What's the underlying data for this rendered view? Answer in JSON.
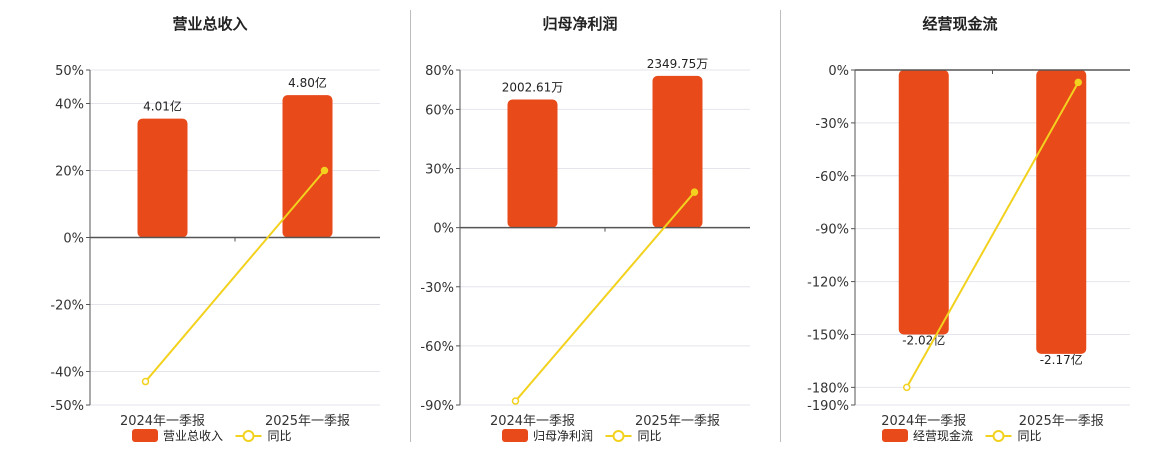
{
  "colors": {
    "bar": "#e84a1a",
    "line": "#f2d21e",
    "axis": "#555555",
    "grid": "#e4e4ec",
    "tick": "#333333"
  },
  "chart_data": [
    {
      "type": "bar",
      "title": "营业总收入",
      "categories": [
        "2024年一季报",
        "2025年一季报"
      ],
      "series": [
        {
          "name": "营业总收入",
          "kind": "bar",
          "values": [
            35.5,
            42.5
          ],
          "labels": [
            "4.01亿",
            "4.80亿"
          ]
        },
        {
          "name": "同比",
          "kind": "line",
          "values": [
            -43,
            20
          ]
        }
      ],
      "ylim": [
        -50,
        50
      ],
      "yticks": [
        50,
        40,
        20,
        0,
        -20,
        -40,
        -50
      ],
      "ytick_labels": [
        "50%",
        "40%",
        "20%",
        "0%",
        "-20%",
        "-40%",
        "-50%"
      ],
      "grid": true,
      "legend_position": "bottom"
    },
    {
      "type": "bar",
      "title": "归母净利润",
      "categories": [
        "2024年一季报",
        "2025年一季报"
      ],
      "series": [
        {
          "name": "归母净利润",
          "kind": "bar",
          "values": [
            65,
            77
          ],
          "labels": [
            "2002.61万",
            "2349.75万"
          ]
        },
        {
          "name": "同比",
          "kind": "line",
          "values": [
            -88,
            18
          ]
        }
      ],
      "ylim": [
        -90,
        80
      ],
      "yticks": [
        80,
        60,
        30,
        0,
        -30,
        -60,
        -90
      ],
      "ytick_labels": [
        "80%",
        "60%",
        "30%",
        "0%",
        "-30%",
        "-60%",
        "-90%"
      ],
      "grid": true,
      "legend_position": "bottom"
    },
    {
      "type": "bar",
      "title": "经营现金流",
      "categories": [
        "2024年一季报",
        "2025年一季报"
      ],
      "series": [
        {
          "name": "经营现金流",
          "kind": "bar",
          "values": [
            -150,
            -161
          ],
          "labels": [
            "-2.02亿",
            "-2.17亿"
          ]
        },
        {
          "name": "同比",
          "kind": "line",
          "values": [
            -180,
            -7
          ]
        }
      ],
      "ylim": [
        -190,
        0
      ],
      "yticks": [
        0,
        -30,
        -60,
        -90,
        -120,
        -150,
        -180,
        -190
      ],
      "ytick_labels": [
        "0%",
        "-30%",
        "-60%",
        "-90%",
        "-120%",
        "-150%",
        "-180%",
        "-190%"
      ],
      "grid": true,
      "legend_position": "bottom"
    }
  ]
}
